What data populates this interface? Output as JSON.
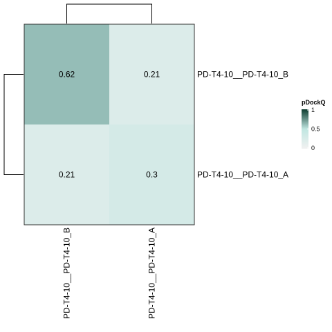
{
  "chart_data": {
    "type": "heatmap",
    "rows": [
      "PD-T4-10__PD-T4-10_B",
      "PD-T4-10__PD-T4-10_A"
    ],
    "columns": [
      "PD-T4-10__PD-T4-10_B",
      "PD-T4-10__PD-T4-10_A"
    ],
    "values": [
      [
        0.62,
        0.21
      ],
      [
        0.21,
        0.3
      ]
    ],
    "cell_labels": [
      [
        "0.62",
        "0.21"
      ],
      [
        "0.21",
        "0.3"
      ]
    ],
    "legend": {
      "title": "pDockQ",
      "range": [
        0,
        1
      ],
      "ticks": [
        0,
        0.5,
        1
      ],
      "tick_labels": [
        "0",
        "0.5",
        "1"
      ],
      "colors": {
        "low": "#f1f1f1",
        "mid": "#c0e6e1",
        "high": "#0e3c30"
      }
    },
    "dendrograms": {
      "rows": true,
      "columns": true
    },
    "legend_position": "right"
  }
}
